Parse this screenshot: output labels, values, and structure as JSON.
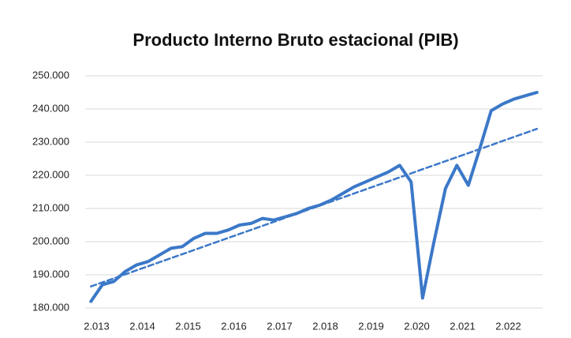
{
  "chart_data": {
    "type": "line",
    "title": "Producto Interno Bruto estacional (PIB)",
    "categories": [
      null,
      "2.013",
      null,
      null,
      null,
      "2.014",
      null,
      null,
      null,
      "2.015",
      null,
      null,
      null,
      "2.016",
      null,
      null,
      null,
      "2.017",
      null,
      null,
      null,
      "2.018",
      null,
      null,
      null,
      "2.019",
      null,
      null,
      null,
      "2.020",
      null,
      null,
      null,
      "2.021",
      null,
      null,
      null,
      "2.022",
      null,
      null
    ],
    "series": [
      {
        "color": "#3b78c8",
        "line_style": "solid",
        "values": [
          182000,
          187000,
          188000,
          191000,
          193000,
          194000,
          196000,
          198000,
          198500,
          201000,
          202500,
          202500,
          203500,
          205000,
          205500,
          207000,
          206500,
          207500,
          208500,
          210000,
          211000,
          212500,
          214500,
          216500,
          218000,
          219500,
          221000,
          223000,
          218000,
          183000,
          200000,
          216000,
          223000,
          217000,
          228000,
          239500,
          241500,
          243000,
          244000,
          245000
        ]
      },
      {
        "color": "#3b78c8",
        "line_style": "dashed",
        "values": [
          186500,
          187718,
          188936,
          190154,
          191372,
          192590,
          193808,
          195026,
          196244,
          197462,
          198680,
          199898,
          201116,
          202334,
          203552,
          204770,
          205988,
          207206,
          208424,
          209642,
          210860,
          212078,
          213296,
          214514,
          215732,
          216950,
          218168,
          219386,
          220604,
          221822,
          223040,
          224258,
          225476,
          226694,
          227912,
          229130,
          230348,
          231566,
          232784,
          234002
        ]
      }
    ],
    "ylim": [
      180000,
      250000
    ],
    "yticks": [
      {
        "value": 180000,
        "label": "180.000"
      },
      {
        "value": 190000,
        "label": "190.000"
      },
      {
        "value": 200000,
        "label": "200.000"
      },
      {
        "value": 210000,
        "label": "210.000"
      },
      {
        "value": 220000,
        "label": "220.000"
      },
      {
        "value": 230000,
        "label": "230.000"
      },
      {
        "value": 240000,
        "label": "240.000"
      },
      {
        "value": 250000,
        "label": "250.000"
      }
    ],
    "grid": true
  }
}
